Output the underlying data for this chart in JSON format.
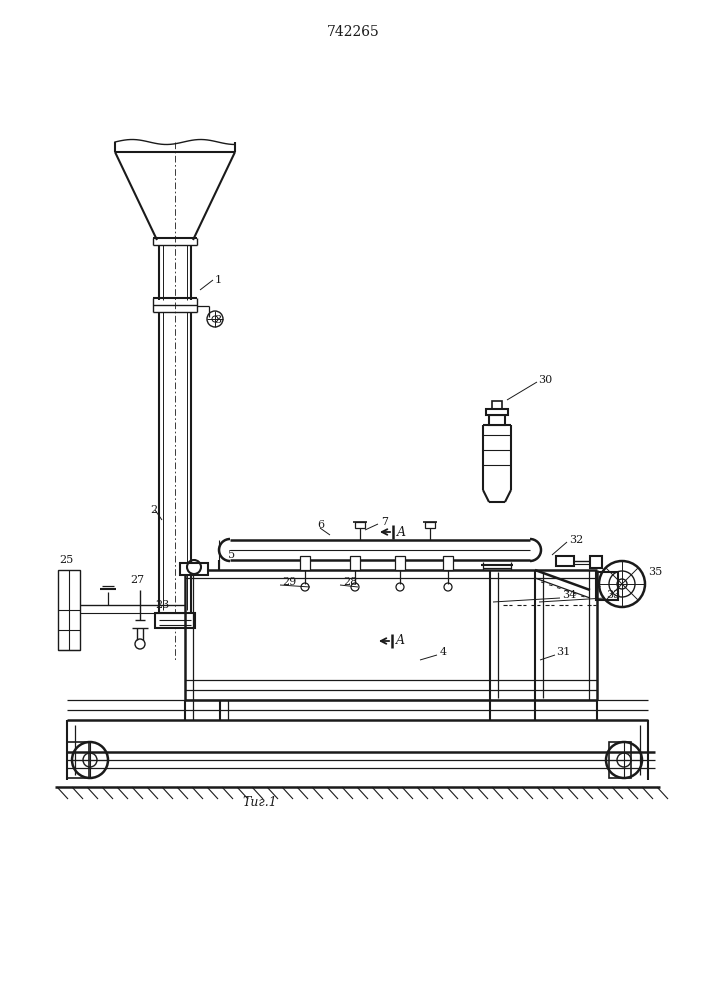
{
  "title": "742265",
  "fig_label": "Τиг.1",
  "bg_color": "#ffffff",
  "line_color": "#1a1a1a",
  "figsize": [
    7.07,
    10.0
  ],
  "dpi": 100
}
